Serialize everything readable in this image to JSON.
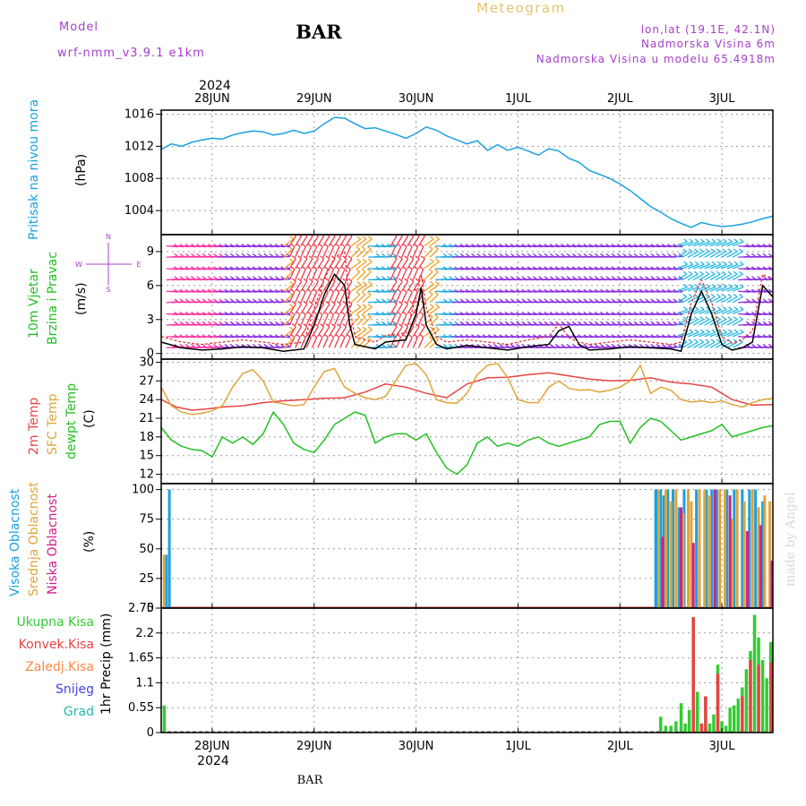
{
  "header": {
    "model_label": "Model",
    "model_name": "wrf-nmm_v3.9.1  e1km",
    "station": "BAR",
    "product": "Meteogram",
    "coords": "lon,lat (19.1E, 42.1N)",
    "elevation": "Nadmorska Visina 6m",
    "model_elevation": "Nadmorska Visina u modelu 65.4918m",
    "footer_station": "BAR",
    "credit": "made by Angel"
  },
  "colors": {
    "pressure": "#1aa0e0",
    "wind_speed": "#000000",
    "wind_gust": "#e23b3b",
    "temp_2m": "#e84444",
    "temp_sfc": "#e0a43a",
    "dewpoint": "#22c022",
    "cloud_high": "#1aa0e0",
    "cloud_mid": "#e0a43a",
    "cloud_low": "#d0208a",
    "precip_total": "#33cc33",
    "precip_conv": "#e84444",
    "precip_frz": "#ff8844",
    "precip_snow": "#4444dd",
    "precip_hail": "#22bbaa"
  },
  "time_axis": {
    "top_year": "2024",
    "bottom_year": "2024",
    "day_labels": [
      "28JUN",
      "29JUN",
      "30JUN",
      "1JUL",
      "2JUL",
      "3JUL"
    ],
    "day_positions": [
      1,
      2,
      3,
      4,
      5,
      6
    ],
    "range": [
      0.5,
      6.5
    ]
  },
  "chart_data": [
    {
      "type": "line",
      "panel": "pressure",
      "labels": {
        "main": "Pritisak na nivou mora",
        "unit": "(hPa)"
      },
      "ylim": [
        1001,
        1016.5
      ],
      "yticks": [
        "1004",
        "1008",
        "1012",
        "1016"
      ],
      "grid": true,
      "series": [
        {
          "key": "pressure",
          "x": [
            0.5,
            0.6,
            0.7,
            0.8,
            0.9,
            1.0,
            1.1,
            1.2,
            1.3,
            1.4,
            1.5,
            1.6,
            1.7,
            1.8,
            1.9,
            2.0,
            2.1,
            2.2,
            2.3,
            2.4,
            2.5,
            2.6,
            2.7,
            2.8,
            2.9,
            3.0,
            3.1,
            3.2,
            3.3,
            3.4,
            3.5,
            3.6,
            3.7,
            3.8,
            3.9,
            4.0,
            4.1,
            4.2,
            4.3,
            4.4,
            4.5,
            4.6,
            4.7,
            4.8,
            4.9,
            5.0,
            5.1,
            5.2,
            5.3,
            5.4,
            5.5,
            5.6,
            5.7,
            5.8,
            5.9,
            6.0,
            6.1,
            6.2,
            6.3,
            6.4,
            6.5
          ],
          "values": [
            1011.6,
            1012.3,
            1012.0,
            1012.5,
            1012.8,
            1013.0,
            1012.9,
            1013.4,
            1013.7,
            1013.9,
            1013.8,
            1013.4,
            1013.6,
            1014.0,
            1013.6,
            1013.9,
            1014.8,
            1015.6,
            1015.5,
            1014.8,
            1014.2,
            1014.3,
            1013.9,
            1013.5,
            1013.0,
            1013.6,
            1014.4,
            1014.0,
            1013.3,
            1012.8,
            1012.3,
            1012.7,
            1011.5,
            1012.2,
            1011.5,
            1011.9,
            1011.4,
            1010.9,
            1011.7,
            1011.4,
            1010.5,
            1010.0,
            1009.0,
            1008.5,
            1008.0,
            1007.3,
            1006.5,
            1005.5,
            1004.5,
            1003.8,
            1003.0,
            1002.4,
            1001.9,
            1002.5,
            1002.2,
            1002.0,
            1002.1,
            1002.3,
            1002.6,
            1003.0,
            1003.3
          ]
        }
      ]
    },
    {
      "type": "line",
      "panel": "wind",
      "labels": {
        "main": "10m Vjetar",
        "sub": "Brzina i Pravac",
        "unit": "(m/s)",
        "compass": [
          "N",
          "W",
          "E",
          "S"
        ]
      },
      "ylim": [
        -0.5,
        10.5
      ],
      "yticks": [
        "0",
        "3",
        "6",
        "9"
      ],
      "grid": true,
      "note": "wind barbs at levels, colours change with time",
      "barb_levels": [
        0.5,
        1.5,
        2.5,
        3.5,
        4.5,
        5.5,
        6.5,
        7.5,
        8.5,
        9.5
      ],
      "series": [
        {
          "key": "wind_speed",
          "x": [
            0.5,
            0.7,
            0.9,
            1.1,
            1.3,
            1.5,
            1.7,
            1.9,
            2.0,
            2.1,
            2.2,
            2.3,
            2.35,
            2.4,
            2.5,
            2.6,
            2.7,
            2.9,
            3.0,
            3.05,
            3.1,
            3.2,
            3.3,
            3.5,
            3.7,
            3.9,
            4.1,
            4.3,
            4.4,
            4.5,
            4.6,
            4.7,
            4.9,
            5.1,
            5.3,
            5.5,
            5.6,
            5.7,
            5.8,
            5.9,
            6.0,
            6.1,
            6.2,
            6.3,
            6.4,
            6.5
          ],
          "values": [
            1.0,
            0.5,
            0.3,
            0.4,
            0.6,
            0.5,
            0.2,
            0.4,
            2.5,
            5.2,
            7.0,
            6.0,
            2.5,
            0.8,
            0.6,
            0.4,
            1.0,
            1.2,
            3.5,
            5.8,
            2.5,
            0.8,
            0.4,
            0.7,
            0.5,
            0.3,
            0.6,
            0.8,
            2.0,
            2.4,
            0.8,
            0.3,
            0.4,
            0.6,
            0.5,
            0.4,
            0.2,
            3.5,
            5.5,
            3.5,
            0.8,
            0.3,
            0.5,
            1.0,
            6.0,
            5.0
          ]
        },
        {
          "key": "wind_gust",
          "x": [
            0.5,
            0.7,
            0.9,
            1.1,
            1.3,
            1.5,
            1.7,
            1.9,
            2.0,
            2.1,
            2.2,
            2.3,
            2.35,
            2.4,
            2.5,
            2.6,
            2.7,
            2.9,
            3.0,
            3.05,
            3.1,
            3.2,
            3.3,
            3.5,
            3.7,
            3.9,
            4.1,
            4.3,
            4.4,
            4.5,
            4.6,
            4.7,
            4.9,
            5.1,
            5.3,
            5.5,
            5.6,
            5.7,
            5.8,
            5.9,
            6.0,
            6.1,
            6.2,
            6.3,
            6.4,
            6.5
          ],
          "values": [
            1.5,
            1.0,
            0.8,
            1.0,
            1.2,
            1.0,
            0.8,
            1.0,
            4.0,
            6.5,
            8.5,
            9.0,
            4.0,
            1.5,
            1.2,
            1.0,
            1.6,
            1.8,
            5.0,
            7.0,
            4.0,
            1.5,
            1.0,
            1.2,
            1.0,
            0.8,
            1.2,
            1.5,
            2.6,
            1.4,
            1.0,
            0.8,
            1.0,
            1.2,
            1.0,
            0.8,
            1.0,
            4.5,
            6.5,
            4.5,
            1.5,
            0.9,
            1.2,
            2.0,
            7.0,
            6.5
          ]
        }
      ]
    },
    {
      "type": "line",
      "panel": "temperature",
      "labels": {
        "t2m": "2m Temp",
        "tsfc": "SFC Temp",
        "td": "dewpt Temp",
        "unit": "(C)"
      },
      "ylim": [
        10.5,
        30.5
      ],
      "yticks": [
        "12",
        "15",
        "18",
        "21",
        "24",
        "27",
        "30"
      ],
      "grid": true,
      "series": [
        {
          "key": "temp_2m",
          "x": [
            0.5,
            0.65,
            0.8,
            0.95,
            1.1,
            1.3,
            1.5,
            1.7,
            1.9,
            2.1,
            2.3,
            2.5,
            2.7,
            2.9,
            3.1,
            3.3,
            3.5,
            3.7,
            3.9,
            4.1,
            4.3,
            4.5,
            4.7,
            4.9,
            5.1,
            5.3,
            5.5,
            5.7,
            5.9,
            6.1,
            6.3,
            6.5
          ],
          "values": [
            24.0,
            22.8,
            22.3,
            22.5,
            22.8,
            23.0,
            23.5,
            23.8,
            24.0,
            24.2,
            24.3,
            25.2,
            26.5,
            26.0,
            25.0,
            24.3,
            26.5,
            27.5,
            27.6,
            28.0,
            28.3,
            27.8,
            27.3,
            27.0,
            27.1,
            27.5,
            26.8,
            26.5,
            26.0,
            24.0,
            23.1,
            23.2
          ]
        },
        {
          "key": "temp_sfc",
          "x": [
            0.5,
            0.6,
            0.7,
            0.8,
            0.9,
            1.0,
            1.1,
            1.2,
            1.3,
            1.4,
            1.5,
            1.6,
            1.7,
            1.8,
            1.9,
            2.0,
            2.1,
            2.2,
            2.3,
            2.4,
            2.5,
            2.6,
            2.7,
            2.8,
            2.9,
            3.0,
            3.1,
            3.2,
            3.3,
            3.4,
            3.5,
            3.6,
            3.7,
            3.8,
            3.9,
            4.0,
            4.1,
            4.2,
            4.3,
            4.4,
            4.5,
            4.6,
            4.7,
            4.8,
            4.9,
            5.0,
            5.1,
            5.2,
            5.3,
            5.4,
            5.5,
            5.6,
            5.7,
            5.8,
            5.9,
            6.0,
            6.1,
            6.2,
            6.3,
            6.4,
            6.5
          ],
          "values": [
            26.0,
            23.0,
            22.0,
            21.6,
            21.8,
            22.2,
            23.0,
            26.0,
            28.2,
            28.8,
            27.0,
            23.6,
            23.3,
            23.0,
            23.2,
            26.0,
            28.5,
            29.0,
            26.0,
            25.0,
            24.3,
            24.0,
            24.5,
            27.0,
            29.5,
            29.8,
            28.0,
            24.0,
            23.5,
            23.4,
            25.0,
            28.0,
            29.5,
            29.8,
            27.5,
            24.0,
            23.5,
            23.5,
            26.0,
            27.0,
            25.8,
            25.5,
            25.6,
            25.2,
            25.5,
            26.0,
            27.0,
            29.5,
            25.0,
            26.0,
            25.5,
            24.0,
            23.6,
            23.8,
            23.5,
            23.8,
            23.2,
            22.8,
            23.5,
            24.0,
            24.2
          ]
        },
        {
          "key": "dewpoint",
          "x": [
            0.5,
            0.6,
            0.7,
            0.8,
            0.9,
            1.0,
            1.1,
            1.2,
            1.3,
            1.4,
            1.5,
            1.6,
            1.7,
            1.8,
            1.9,
            2.0,
            2.1,
            2.2,
            2.3,
            2.4,
            2.5,
            2.6,
            2.7,
            2.8,
            2.9,
            3.0,
            3.1,
            3.2,
            3.3,
            3.4,
            3.5,
            3.6,
            3.7,
            3.8,
            3.9,
            4.0,
            4.1,
            4.2,
            4.3,
            4.4,
            4.5,
            4.6,
            4.7,
            4.8,
            4.9,
            5.0,
            5.1,
            5.2,
            5.3,
            5.4,
            5.5,
            5.6,
            5.7,
            5.8,
            5.9,
            6.0,
            6.1,
            6.2,
            6.3,
            6.4,
            6.5
          ],
          "values": [
            19.5,
            17.5,
            16.5,
            16.0,
            15.8,
            14.8,
            18.0,
            17.0,
            18.0,
            16.8,
            18.5,
            22.0,
            20.0,
            17.0,
            16.0,
            15.5,
            17.5,
            20.0,
            21.0,
            22.0,
            21.5,
            17.0,
            18.0,
            18.5,
            18.5,
            17.5,
            18.5,
            15.5,
            13.0,
            12.0,
            13.5,
            17.0,
            18.0,
            16.5,
            17.0,
            16.5,
            17.5,
            18.0,
            17.0,
            16.5,
            17.0,
            17.5,
            18.0,
            20.0,
            20.5,
            20.5,
            17.0,
            19.5,
            21.0,
            20.5,
            19.0,
            17.5,
            18.0,
            18.5,
            19.0,
            20.0,
            18.0,
            18.5,
            19.0,
            19.5,
            19.8
          ]
        }
      ]
    },
    {
      "type": "bar",
      "panel": "cloud",
      "labels": {
        "high": "Visoka Oblacnost",
        "mid": "Srednja Oblacnost",
        "low": "Niska Oblacnost",
        "unit": "(%)"
      },
      "ylim": [
        0,
        105
      ],
      "yticks": [
        "0",
        "25",
        "50",
        "75",
        "100"
      ],
      "grid": true,
      "series": [
        {
          "key": "cloud_high",
          "x": [
            0.55,
            0.58,
            5.35,
            5.37,
            5.4,
            5.43,
            5.47,
            5.52,
            5.58,
            5.63,
            5.75,
            5.85,
            5.9,
            5.95,
            6.05,
            6.12,
            6.2,
            6.27,
            6.33,
            6.4
          ],
          "values": [
            45,
            100,
            100,
            100,
            100,
            95,
            100,
            100,
            85,
            100,
            100,
            100,
            100,
            100,
            100,
            100,
            100,
            100,
            100,
            90
          ]
        },
        {
          "key": "cloud_mid",
          "x": [
            0.53,
            5.38,
            5.45,
            5.5,
            5.55,
            5.62,
            5.67,
            5.7,
            5.78,
            5.83,
            5.88,
            5.98,
            6.03,
            6.1,
            6.15,
            6.22,
            6.3,
            6.36,
            6.42,
            6.47
          ],
          "values": [
            45,
            100,
            100,
            90,
            100,
            80,
            100,
            90,
            100,
            100,
            95,
            100,
            100,
            75,
            100,
            90,
            100,
            85,
            95,
            90
          ]
        },
        {
          "key": "cloud_low",
          "x": [
            5.42,
            5.6,
            5.72,
            5.93,
            6.08,
            6.25,
            6.38,
            6.49
          ],
          "values": [
            60,
            85,
            55,
            100,
            95,
            65,
            70,
            40
          ]
        }
      ]
    },
    {
      "type": "bar",
      "panel": "precip",
      "labels": {
        "total": "Ukupna Kisa",
        "conv": "Konvek.Kisa",
        "frz": "Zaledj.Kisa",
        "snow": "Snijeg",
        "hail": "Grad",
        "unit": "1hr Precip (mm)"
      },
      "ylim": [
        0,
        2.75
      ],
      "yticks": [
        "0",
        "0.55",
        "1.1",
        "1.65",
        "2.2",
        "2.75"
      ],
      "grid": true,
      "series": [
        {
          "key": "precip_total",
          "x": [
            0.53,
            5.4,
            5.45,
            5.5,
            5.55,
            5.6,
            5.64,
            5.68,
            5.72,
            5.76,
            5.8,
            5.84,
            5.88,
            5.92,
            5.96,
            6.0,
            6.04,
            6.08,
            6.12,
            6.16,
            6.2,
            6.24,
            6.28,
            6.32,
            6.36,
            6.4,
            6.44,
            6.48
          ],
          "values": [
            0.6,
            0.35,
            0.15,
            0.15,
            0.25,
            0.65,
            0.2,
            0.5,
            2.55,
            0.9,
            0.2,
            0.8,
            0.2,
            0.4,
            1.5,
            0.25,
            0.15,
            0.55,
            0.6,
            0.75,
            1.0,
            1.4,
            1.8,
            2.6,
            2.1,
            1.6,
            1.2,
            2.0
          ]
        },
        {
          "key": "precip_conv",
          "x": [
            5.72,
            5.8,
            5.84,
            5.96,
            6.2,
            6.28,
            6.36,
            6.48
          ],
          "values": [
            2.55,
            0.2,
            0.8,
            1.3,
            0.8,
            1.6,
            1.5,
            1.55
          ]
        }
      ]
    }
  ]
}
